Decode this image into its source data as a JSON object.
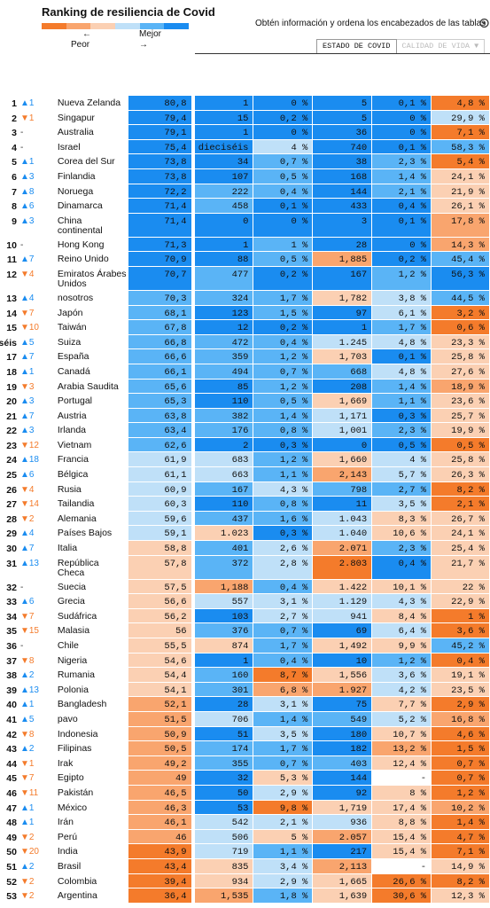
{
  "header": {
    "title": "Ranking de resiliencia de Covid",
    "worse": "Peor",
    "better": "Mejor",
    "arrow_left": "←",
    "arrow_right": "→",
    "legend_colors": [
      "#f47b2b",
      "#f9a56e",
      "#fbd0b3",
      "#bfe0f8",
      "#5ab4f6",
      "#1a8cf0"
    ],
    "hint": "Obtén información y ordena los encabezados de las tablas",
    "tabs": [
      "ESTADO DE COVID",
      "CALIDAD DE VIDA ▼"
    ]
  },
  "rows": [
    {
      "rank": "1",
      "change": "▲1",
      "country": "Nueva Zelanda",
      "cells": [
        "80,8",
        "1",
        "0 %",
        "5",
        "0,1 %",
        "4,8 %"
      ],
      "colors": [
        "#1a8cf0",
        "#1a8cf0",
        "#1a8cf0",
        "#1a8cf0",
        "#1a8cf0",
        "#f47b2b"
      ]
    },
    {
      "rank": "2",
      "change": "▼1",
      "country": "Singapur",
      "cells": [
        "79,4",
        "15",
        "0,2 %",
        "5",
        "0 %",
        "29,9 %"
      ],
      "colors": [
        "#1a8cf0",
        "#1a8cf0",
        "#1a8cf0",
        "#1a8cf0",
        "#1a8cf0",
        "#bfe0f8"
      ]
    },
    {
      "rank": "3",
      "change": "-",
      "country": "Australia",
      "cells": [
        "79,1",
        "1",
        "0 %",
        "36",
        "0 %",
        "7,1 %"
      ],
      "colors": [
        "#1a8cf0",
        "#1a8cf0",
        "#1a8cf0",
        "#1a8cf0",
        "#1a8cf0",
        "#f47b2b"
      ]
    },
    {
      "rank": "4",
      "change": "-",
      "country": "Israel",
      "cells": [
        "75,4",
        "dieciséis",
        "4 %",
        "740",
        "0,1 %",
        "58,3 %"
      ],
      "colors": [
        "#1a8cf0",
        "#1a8cf0",
        "#bfe0f8",
        "#1a8cf0",
        "#1a8cf0",
        "#5ab4f6"
      ]
    },
    {
      "rank": "5",
      "change": "▲1",
      "country": "Corea del Sur",
      "cells": [
        "73,8",
        "34",
        "0,7 %",
        "38",
        "2,3 %",
        "5,4 %"
      ],
      "colors": [
        "#1a8cf0",
        "#1a8cf0",
        "#5ab4f6",
        "#1a8cf0",
        "#5ab4f6",
        "#f47b2b"
      ]
    },
    {
      "rank": "6",
      "change": "▲3",
      "country": "Finlandia",
      "cells": [
        "73,8",
        "107",
        "0,5 %",
        "168",
        "1,4 %",
        "24,1 %"
      ],
      "colors": [
        "#1a8cf0",
        "#1a8cf0",
        "#5ab4f6",
        "#1a8cf0",
        "#5ab4f6",
        "#fbd0b3"
      ]
    },
    {
      "rank": "7",
      "change": "▲8",
      "country": "Noruega",
      "cells": [
        "72,2",
        "222",
        "0,4 %",
        "144",
        "2,1 %",
        "21,9 %"
      ],
      "colors": [
        "#1a8cf0",
        "#5ab4f6",
        "#5ab4f6",
        "#1a8cf0",
        "#5ab4f6",
        "#fbd0b3"
      ]
    },
    {
      "rank": "8",
      "change": "▲6",
      "country": "Dinamarca",
      "cells": [
        "71,4",
        "458",
        "0,1 %",
        "433",
        "0,4 %",
        "26,1 %"
      ],
      "colors": [
        "#1a8cf0",
        "#5ab4f6",
        "#1a8cf0",
        "#1a8cf0",
        "#1a8cf0",
        "#fbd0b3"
      ]
    },
    {
      "rank": "9",
      "change": "▲3",
      "country": "China continental",
      "cells": [
        "71,4",
        "0",
        "0 %",
        "3",
        "0,1 %",
        "17,8 %"
      ],
      "colors": [
        "#1a8cf0",
        "#1a8cf0",
        "#1a8cf0",
        "#1a8cf0",
        "#1a8cf0",
        "#f9a56e"
      ]
    },
    {
      "rank": "10",
      "change": "-",
      "country": "Hong Kong",
      "cells": [
        "71,3",
        "1",
        "1 %",
        "28",
        "0 %",
        "14,3 %"
      ],
      "colors": [
        "#1a8cf0",
        "#1a8cf0",
        "#5ab4f6",
        "#1a8cf0",
        "#1a8cf0",
        "#f9a56e"
      ]
    },
    {
      "rank": "11",
      "change": "▲7",
      "country": "Reino Unido",
      "cells": [
        "70,9",
        "88",
        "0,5 %",
        "1,885",
        "0,2 %",
        "45,4 %"
      ],
      "colors": [
        "#1a8cf0",
        "#1a8cf0",
        "#5ab4f6",
        "#f9a56e",
        "#1a8cf0",
        "#5ab4f6"
      ]
    },
    {
      "rank": "12",
      "change": "▼4",
      "country": "Emiratos Árabes Unidos",
      "cells": [
        "70,7",
        "477",
        "0,2 %",
        "167",
        "1,2 %",
        "56,3 %"
      ],
      "colors": [
        "#1a8cf0",
        "#5ab4f6",
        "#1a8cf0",
        "#1a8cf0",
        "#5ab4f6",
        "#1a8cf0"
      ]
    },
    {
      "rank": "13",
      "change": "▲4",
      "country": "nosotros",
      "cells": [
        "70,3",
        "324",
        "1,7 %",
        "1,782",
        "3,8 %",
        "44,5 %"
      ],
      "colors": [
        "#5ab4f6",
        "#5ab4f6",
        "#5ab4f6",
        "#fbd0b3",
        "#bfe0f8",
        "#5ab4f6"
      ]
    },
    {
      "rank": "14",
      "change": "▼7",
      "country": "Japón",
      "cells": [
        "68,1",
        "123",
        "1,5 %",
        "97",
        "6,1 %",
        "3,2 %"
      ],
      "colors": [
        "#5ab4f6",
        "#1a8cf0",
        "#5ab4f6",
        "#1a8cf0",
        "#bfe0f8",
        "#f47b2b"
      ]
    },
    {
      "rank": "15",
      "change": "▼10",
      "country": "Taiwán",
      "cells": [
        "67,8",
        "12",
        "0,2 %",
        "1",
        "1,7 %",
        "0,6 %"
      ],
      "colors": [
        "#5ab4f6",
        "#1a8cf0",
        "#1a8cf0",
        "#1a8cf0",
        "#5ab4f6",
        "#f47b2b"
      ]
    },
    {
      "rank": "dieciséis",
      "change": "▲5",
      "country": "Suiza",
      "cells": [
        "66,8",
        "472",
        "0,4 %",
        "1.245",
        "4,8 %",
        "23,3 %"
      ],
      "colors": [
        "#5ab4f6",
        "#5ab4f6",
        "#5ab4f6",
        "#bfe0f8",
        "#bfe0f8",
        "#fbd0b3"
      ]
    },
    {
      "rank": "17",
      "change": "▲7",
      "country": "España",
      "cells": [
        "66,6",
        "359",
        "1,2 %",
        "1,703",
        "0,1 %",
        "25,8 %"
      ],
      "colors": [
        "#5ab4f6",
        "#5ab4f6",
        "#5ab4f6",
        "#fbd0b3",
        "#1a8cf0",
        "#fbd0b3"
      ]
    },
    {
      "rank": "18",
      "change": "▲1",
      "country": "Canadá",
      "cells": [
        "66,1",
        "494",
        "0,7 %",
        "668",
        "4,8 %",
        "27,6 %"
      ],
      "colors": [
        "#5ab4f6",
        "#5ab4f6",
        "#5ab4f6",
        "#5ab4f6",
        "#bfe0f8",
        "#fbd0b3"
      ]
    },
    {
      "rank": "19",
      "change": "▼3",
      "country": "Arabia Saudita",
      "cells": [
        "65,6",
        "85",
        "1,2 %",
        "208",
        "1,4 %",
        "18,9 %"
      ],
      "colors": [
        "#5ab4f6",
        "#1a8cf0",
        "#5ab4f6",
        "#1a8cf0",
        "#5ab4f6",
        "#f9a56e"
      ]
    },
    {
      "rank": "20",
      "change": "▲3",
      "country": "Portugal",
      "cells": [
        "65,3",
        "110",
        "0,5 %",
        "1,669",
        "1,1 %",
        "23,6 %"
      ],
      "colors": [
        "#5ab4f6",
        "#1a8cf0",
        "#5ab4f6",
        "#fbd0b3",
        "#5ab4f6",
        "#fbd0b3"
      ]
    },
    {
      "rank": "21",
      "change": "▲7",
      "country": "Austria",
      "cells": [
        "63,8",
        "382",
        "1,4 %",
        "1,171",
        "0,3 %",
        "25,7 %"
      ],
      "colors": [
        "#5ab4f6",
        "#5ab4f6",
        "#5ab4f6",
        "#bfe0f8",
        "#1a8cf0",
        "#fbd0b3"
      ]
    },
    {
      "rank": "22",
      "change": "▲3",
      "country": "Irlanda",
      "cells": [
        "63,4",
        "176",
        "0,8 %",
        "1,001",
        "2,3 %",
        "19,9 %"
      ],
      "colors": [
        "#5ab4f6",
        "#5ab4f6",
        "#5ab4f6",
        "#bfe0f8",
        "#5ab4f6",
        "#fbd0b3"
      ]
    },
    {
      "rank": "23",
      "change": "▼12",
      "country": "Vietnam",
      "cells": [
        "62,6",
        "2",
        "0,3 %",
        "0",
        "0,5 %",
        "0,5 %"
      ],
      "colors": [
        "#5ab4f6",
        "#1a8cf0",
        "#1a8cf0",
        "#1a8cf0",
        "#1a8cf0",
        "#f47b2b"
      ]
    },
    {
      "rank": "24",
      "change": "▲18",
      "country": "Francia",
      "cells": [
        "61,9",
        "683",
        "1,2 %",
        "1,660",
        "4 %",
        "25,8 %"
      ],
      "colors": [
        "#bfe0f8",
        "#bfe0f8",
        "#5ab4f6",
        "#fbd0b3",
        "#bfe0f8",
        "#fbd0b3"
      ]
    },
    {
      "rank": "25",
      "change": "▲6",
      "country": "Bélgica",
      "cells": [
        "61,1",
        "663",
        "1,1 %",
        "2,143",
        "5,7 %",
        "26,3 %"
      ],
      "colors": [
        "#bfe0f8",
        "#bfe0f8",
        "#5ab4f6",
        "#f9a56e",
        "#bfe0f8",
        "#fbd0b3"
      ]
    },
    {
      "rank": "26",
      "change": "▼4",
      "country": "Rusia",
      "cells": [
        "60,9",
        "167",
        "4,3 %",
        "798",
        "2,7 %",
        "8,2 %"
      ],
      "colors": [
        "#bfe0f8",
        "#5ab4f6",
        "#bfe0f8",
        "#5ab4f6",
        "#5ab4f6",
        "#f47b2b"
      ]
    },
    {
      "rank": "27",
      "change": "▼14",
      "country": "Tailandia",
      "cells": [
        "60,3",
        "110",
        "0,8 %",
        "11",
        "3,5 %",
        "2,1 %"
      ],
      "colors": [
        "#bfe0f8",
        "#1a8cf0",
        "#5ab4f6",
        "#1a8cf0",
        "#bfe0f8",
        "#f47b2b"
      ]
    },
    {
      "rank": "28",
      "change": "▼2",
      "country": "Alemania",
      "cells": [
        "59,6",
        "437",
        "1,6 %",
        "1.043",
        "8,3 %",
        "26,7 %"
      ],
      "colors": [
        "#bfe0f8",
        "#5ab4f6",
        "#5ab4f6",
        "#bfe0f8",
        "#fbd0b3",
        "#fbd0b3"
      ]
    },
    {
      "rank": "29",
      "change": "▲4",
      "country": "Países Bajos",
      "cells": [
        "59,1",
        "1.023",
        "0,3 %",
        "1.040",
        "10,6 %",
        "24,1 %"
      ],
      "colors": [
        "#bfe0f8",
        "#fbd0b3",
        "#1a8cf0",
        "#bfe0f8",
        "#fbd0b3",
        "#fbd0b3"
      ]
    },
    {
      "rank": "30",
      "change": "▲7",
      "country": "Italia",
      "cells": [
        "58,8",
        "401",
        "2,6 %",
        "2.071",
        "2,3 %",
        "25,4 %"
      ],
      "colors": [
        "#fbd0b3",
        "#5ab4f6",
        "#bfe0f8",
        "#f9a56e",
        "#5ab4f6",
        "#fbd0b3"
      ]
    },
    {
      "rank": "31",
      "change": "▲13",
      "country": "República Checa",
      "cells": [
        "57,8",
        "372",
        "2,8 %",
        "2.803",
        "0,4 %",
        "21,7 %"
      ],
      "colors": [
        "#fbd0b3",
        "#5ab4f6",
        "#bfe0f8",
        "#f47b2b",
        "#1a8cf0",
        "#fbd0b3"
      ]
    },
    {
      "rank": "32",
      "change": "-",
      "country": "Suecia",
      "cells": [
        "57,5",
        "1,188",
        "0,4 %",
        "1.422",
        "10,1 %",
        "22 %"
      ],
      "colors": [
        "#fbd0b3",
        "#f9a56e",
        "#5ab4f6",
        "#fbd0b3",
        "#fbd0b3",
        "#fbd0b3"
      ]
    },
    {
      "rank": "33",
      "change": "▲6",
      "country": "Grecia",
      "cells": [
        "56,6",
        "557",
        "3,1 %",
        "1.129",
        "4,3 %",
        "22,9 %"
      ],
      "colors": [
        "#fbd0b3",
        "#bfe0f8",
        "#bfe0f8",
        "#bfe0f8",
        "#bfe0f8",
        "#fbd0b3"
      ]
    },
    {
      "rank": "34",
      "change": "▼7",
      "country": "Sudáfrica",
      "cells": [
        "56,2",
        "103",
        "2,7 %",
        "941",
        "8,4 %",
        "1 %"
      ],
      "colors": [
        "#fbd0b3",
        "#1a8cf0",
        "#bfe0f8",
        "#bfe0f8",
        "#fbd0b3",
        "#f47b2b"
      ]
    },
    {
      "rank": "35",
      "change": "▼15",
      "country": "Malasia",
      "cells": [
        "56",
        "376",
        "0,7 %",
        "69",
        "6,4 %",
        "3,6 %"
      ],
      "colors": [
        "#fbd0b3",
        "#5ab4f6",
        "#5ab4f6",
        "#1a8cf0",
        "#bfe0f8",
        "#f47b2b"
      ]
    },
    {
      "rank": "36",
      "change": "-",
      "country": "Chile",
      "cells": [
        "55,5",
        "874",
        "1,7 %",
        "1,492",
        "9,9 %",
        "45,2 %"
      ],
      "colors": [
        "#fbd0b3",
        "#fbd0b3",
        "#5ab4f6",
        "#fbd0b3",
        "#fbd0b3",
        "#5ab4f6"
      ]
    },
    {
      "rank": "37",
      "change": "▼8",
      "country": "Nigeria",
      "cells": [
        "54,6",
        "1",
        "0,4 %",
        "10",
        "1,2 %",
        "0,4 %"
      ],
      "colors": [
        "#fbd0b3",
        "#1a8cf0",
        "#5ab4f6",
        "#1a8cf0",
        "#5ab4f6",
        "#f47b2b"
      ]
    },
    {
      "rank": "38",
      "change": "▲2",
      "country": "Rumania",
      "cells": [
        "54,4",
        "160",
        "8,7 %",
        "1,556",
        "3,6 %",
        "19,1 %"
      ],
      "colors": [
        "#fbd0b3",
        "#5ab4f6",
        "#f47b2b",
        "#fbd0b3",
        "#bfe0f8",
        "#fbd0b3"
      ]
    },
    {
      "rank": "39",
      "change": "▲13",
      "country": "Polonia",
      "cells": [
        "54,1",
        "301",
        "6,8 %",
        "1.927",
        "4,2 %",
        "23,5 %"
      ],
      "colors": [
        "#fbd0b3",
        "#5ab4f6",
        "#f9a56e",
        "#f9a56e",
        "#bfe0f8",
        "#fbd0b3"
      ]
    },
    {
      "rank": "40",
      "change": "▲1",
      "country": "Bangladesh",
      "cells": [
        "52,1",
        "28",
        "3,1 %",
        "75",
        "7,7 %",
        "2,9 %"
      ],
      "colors": [
        "#f9a56e",
        "#1a8cf0",
        "#bfe0f8",
        "#1a8cf0",
        "#fbd0b3",
        "#f47b2b"
      ]
    },
    {
      "rank": "41",
      "change": "▲5",
      "country": "pavo",
      "cells": [
        "51,5",
        "706",
        "1,4 %",
        "549",
        "5,2 %",
        "16,8 %"
      ],
      "colors": [
        "#f9a56e",
        "#bfe0f8",
        "#5ab4f6",
        "#5ab4f6",
        "#bfe0f8",
        "#f9a56e"
      ]
    },
    {
      "rank": "42",
      "change": "▼8",
      "country": "Indonesia",
      "cells": [
        "50,9",
        "51",
        "3,5 %",
        "180",
        "10,7 %",
        "4,6 %"
      ],
      "colors": [
        "#f9a56e",
        "#1a8cf0",
        "#bfe0f8",
        "#1a8cf0",
        "#fbd0b3",
        "#f47b2b"
      ]
    },
    {
      "rank": "43",
      "change": "▲2",
      "country": "Filipinas",
      "cells": [
        "50,5",
        "174",
        "1,7 %",
        "182",
        "13,2 %",
        "1,5 %"
      ],
      "colors": [
        "#f9a56e",
        "#5ab4f6",
        "#5ab4f6",
        "#1a8cf0",
        "#f9a56e",
        "#f47b2b"
      ]
    },
    {
      "rank": "44",
      "change": "▼1",
      "country": "Irak",
      "cells": [
        "49,2",
        "355",
        "0,7 %",
        "403",
        "12,4 %",
        "0,7 %"
      ],
      "colors": [
        "#f9a56e",
        "#5ab4f6",
        "#5ab4f6",
        "#5ab4f6",
        "#fbd0b3",
        "#f47b2b"
      ]
    },
    {
      "rank": "45",
      "change": "▼7",
      "country": "Egipto",
      "cells": [
        "49",
        "32",
        "5,3 %",
        "144",
        "-",
        "0,7 %"
      ],
      "colors": [
        "#f9a56e",
        "#1a8cf0",
        "#fbd0b3",
        "#1a8cf0",
        "#ffffff",
        "#f47b2b"
      ]
    },
    {
      "rank": "46",
      "change": "▼11",
      "country": "Pakistán",
      "cells": [
        "46,5",
        "50",
        "2,9 %",
        "92",
        "8 %",
        "1,2 %"
      ],
      "colors": [
        "#f9a56e",
        "#1a8cf0",
        "#bfe0f8",
        "#1a8cf0",
        "#fbd0b3",
        "#f47b2b"
      ]
    },
    {
      "rank": "47",
      "change": "▲1",
      "country": "México",
      "cells": [
        "46,3",
        "53",
        "9,8 %",
        "1,719",
        "17,4 %",
        "10,2 %"
      ],
      "colors": [
        "#f9a56e",
        "#1a8cf0",
        "#f47b2b",
        "#fbd0b3",
        "#fbd0b3",
        "#f9a56e"
      ]
    },
    {
      "rank": "48",
      "change": "▲1",
      "country": "Irán",
      "cells": [
        "46,1",
        "542",
        "2,1 %",
        "936",
        "8,8 %",
        "1,4 %"
      ],
      "colors": [
        "#f9a56e",
        "#bfe0f8",
        "#bfe0f8",
        "#bfe0f8",
        "#fbd0b3",
        "#f47b2b"
      ]
    },
    {
      "rank": "49",
      "change": "▼2",
      "country": "Perú",
      "cells": [
        "46",
        "506",
        "5 %",
        "2.057",
        "15,4 %",
        "4,7 %"
      ],
      "colors": [
        "#f9a56e",
        "#bfe0f8",
        "#fbd0b3",
        "#f9a56e",
        "#fbd0b3",
        "#f47b2b"
      ]
    },
    {
      "rank": "50",
      "change": "▼20",
      "country": "India",
      "cells": [
        "43,9",
        "719",
        "1,1 %",
        "217",
        "15,4 %",
        "7,1 %"
      ],
      "colors": [
        "#f47b2b",
        "#bfe0f8",
        "#5ab4f6",
        "#1a8cf0",
        "#fbd0b3",
        "#f47b2b"
      ]
    },
    {
      "rank": "51",
      "change": "▲2",
      "country": "Brasil",
      "cells": [
        "43,4",
        "835",
        "3,4 %",
        "2,113",
        "-",
        "14,9 %"
      ],
      "colors": [
        "#f47b2b",
        "#fbd0b3",
        "#bfe0f8",
        "#f9a56e",
        "#ffffff",
        "#fbd0b3"
      ]
    },
    {
      "rank": "52",
      "change": "▼2",
      "country": "Colombia",
      "cells": [
        "39,4",
        "934",
        "2,9 %",
        "1,665",
        "26,6 %",
        "8,2 %"
      ],
      "colors": [
        "#f47b2b",
        "#fbd0b3",
        "#bfe0f8",
        "#fbd0b3",
        "#f47b2b",
        "#f47b2b"
      ]
    },
    {
      "rank": "53",
      "change": "▼2",
      "country": "Argentina",
      "cells": [
        "36,4",
        "1,535",
        "1,8 %",
        "1,639",
        "30,6 %",
        "12,3 %"
      ],
      "colors": [
        "#f47b2b",
        "#f9a56e",
        "#5ab4f6",
        "#fbd0b3",
        "#f47b2b",
        "#fbd0b3"
      ]
    }
  ]
}
